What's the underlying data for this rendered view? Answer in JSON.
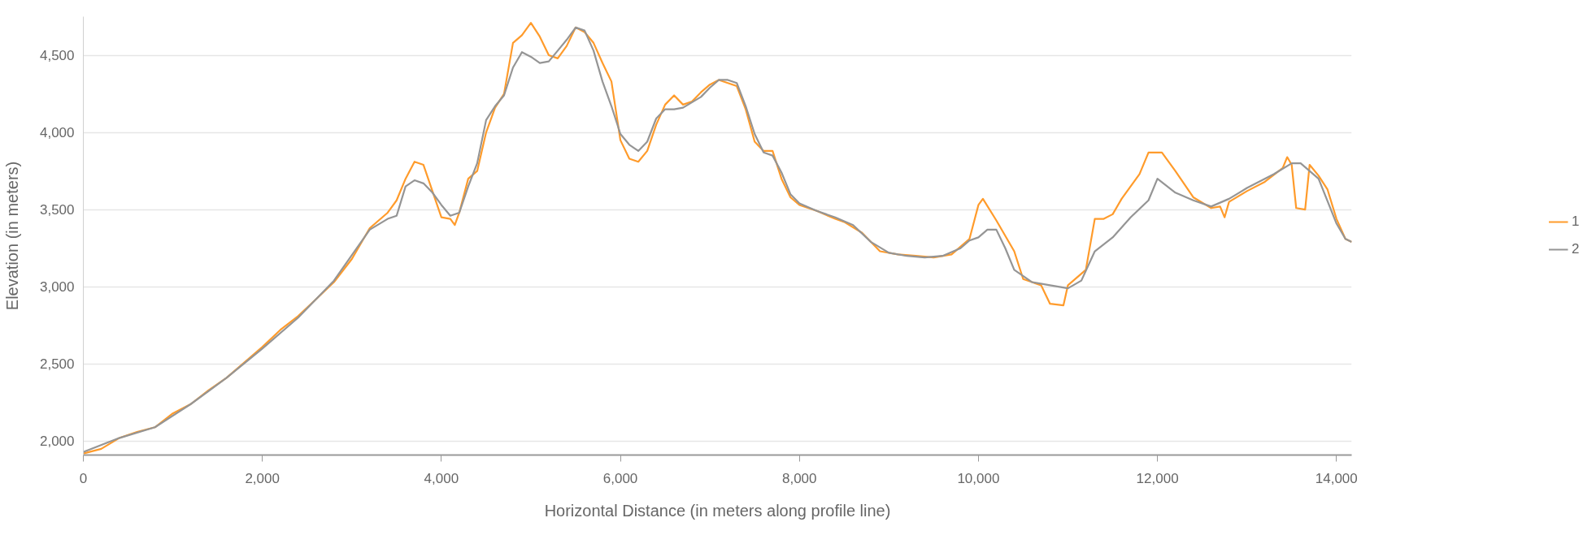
{
  "chart_data": {
    "type": "line",
    "xlabel": "Horizontal Distance (in meters along profile line)",
    "ylabel": "Elevation (in meters)",
    "xlim": [
      0,
      14170
    ],
    "ylim": [
      1910,
      4750
    ],
    "xticks": [
      0,
      {
        "value": 2000,
        "label": "2,000"
      },
      {
        "value": 4000,
        "label": "4,000"
      },
      {
        "value": 6000,
        "label": "6,000"
      },
      {
        "value": 8000,
        "label": "8,000"
      },
      {
        "value": 10000,
        "label": "10,000"
      },
      {
        "value": 12000,
        "label": "12,000"
      },
      {
        "value": 14000,
        "label": "14,000"
      }
    ],
    "yticks": [
      {
        "value": 2000,
        "label": "2,000"
      },
      {
        "value": 2500,
        "label": "2,500"
      },
      {
        "value": 3000,
        "label": "3,000"
      },
      {
        "value": 3500,
        "label": "3,500"
      },
      {
        "value": 4000,
        "label": "4,000"
      },
      {
        "value": 4500,
        "label": "4,500"
      }
    ],
    "grid": "y",
    "legend": "right",
    "line_style": "solid",
    "series": [
      {
        "name": "1",
        "color": "#ff9b2b",
        "x": [
          0,
          200,
          400,
          600,
          800,
          1000,
          1200,
          1400,
          1600,
          1800,
          2000,
          2200,
          2400,
          2600,
          2800,
          3000,
          3200,
          3400,
          3500,
          3600,
          3700,
          3800,
          3900,
          4000,
          4100,
          4150,
          4200,
          4300,
          4400,
          4500,
          4600,
          4700,
          4800,
          4900,
          5000,
          5100,
          5200,
          5300,
          5400,
          5500,
          5600,
          5700,
          5800,
          5900,
          6000,
          6100,
          6200,
          6300,
          6400,
          6500,
          6600,
          6700,
          6800,
          6900,
          7000,
          7100,
          7200,
          7300,
          7400,
          7500,
          7600,
          7700,
          7800,
          7900,
          8000,
          8200,
          8400,
          8500,
          8700,
          8900,
          9100,
          9300,
          9500,
          9700,
          9900,
          10000,
          10050,
          10200,
          10400,
          10500,
          10700,
          10800,
          10950,
          11000,
          11200,
          11300,
          11400,
          11500,
          11600,
          11800,
          11900,
          12050,
          12200,
          12400,
          12600,
          12700,
          12750,
          12800,
          13000,
          13200,
          13400,
          13450,
          13500,
          13550,
          13650,
          13700,
          13800,
          13900,
          14000,
          14100,
          14170
        ],
        "values": [
          1920,
          1950,
          2020,
          2060,
          2090,
          2180,
          2240,
          2330,
          2410,
          2510,
          2610,
          2720,
          2810,
          2920,
          3030,
          3180,
          3380,
          3480,
          3560,
          3700,
          3810,
          3790,
          3620,
          3450,
          3440,
          3400,
          3480,
          3700,
          3750,
          4000,
          4160,
          4250,
          4580,
          4630,
          4710,
          4620,
          4500,
          4480,
          4560,
          4680,
          4650,
          4580,
          4450,
          4330,
          3950,
          3830,
          3810,
          3880,
          4050,
          4180,
          4240,
          4180,
          4200,
          4260,
          4310,
          4340,
          4320,
          4300,
          4150,
          3940,
          3880,
          3880,
          3700,
          3580,
          3530,
          3490,
          3440,
          3420,
          3350,
          3230,
          3210,
          3200,
          3190,
          3210,
          3310,
          3530,
          3570,
          3430,
          3230,
          3050,
          3010,
          2890,
          2880,
          3010,
          3110,
          3440,
          3440,
          3470,
          3570,
          3730,
          3870,
          3870,
          3750,
          3580,
          3510,
          3520,
          3450,
          3550,
          3620,
          3680,
          3770,
          3840,
          3790,
          3510,
          3500,
          3790,
          3720,
          3630,
          3440,
          3310,
          3290
        ]
      },
      {
        "name": "2",
        "color": "#959595",
        "x": [
          0,
          400,
          800,
          1200,
          1600,
          2000,
          2400,
          2800,
          3200,
          3400,
          3500,
          3600,
          3700,
          3800,
          3900,
          4000,
          4100,
          4200,
          4300,
          4400,
          4500,
          4600,
          4700,
          4800,
          4900,
          5000,
          5100,
          5200,
          5300,
          5400,
          5500,
          5600,
          5700,
          5800,
          5900,
          6000,
          6100,
          6200,
          6300,
          6400,
          6500,
          6600,
          6700,
          6900,
          7000,
          7100,
          7200,
          7300,
          7400,
          7500,
          7600,
          7700,
          7800,
          7900,
          8000,
          8200,
          8400,
          8600,
          8800,
          9000,
          9200,
          9400,
          9600,
          9800,
          9900,
          10000,
          10100,
          10200,
          10300,
          10400,
          10600,
          10800,
          11000,
          11150,
          11300,
          11500,
          11700,
          11900,
          12000,
          12200,
          12400,
          12600,
          12800,
          13000,
          13300,
          13500,
          13600,
          13800,
          14000,
          14100,
          14170
        ],
        "values": [
          1930,
          2020,
          2090,
          2240,
          2410,
          2600,
          2800,
          3040,
          3370,
          3440,
          3460,
          3650,
          3690,
          3670,
          3610,
          3530,
          3460,
          3480,
          3650,
          3800,
          4080,
          4170,
          4240,
          4420,
          4520,
          4490,
          4450,
          4460,
          4530,
          4600,
          4680,
          4660,
          4530,
          4330,
          4170,
          3990,
          3920,
          3880,
          3940,
          4090,
          4150,
          4150,
          4160,
          4230,
          4290,
          4340,
          4340,
          4320,
          4170,
          3990,
          3870,
          3850,
          3740,
          3600,
          3540,
          3490,
          3450,
          3400,
          3290,
          3220,
          3200,
          3190,
          3200,
          3250,
          3300,
          3320,
          3370,
          3370,
          3250,
          3110,
          3030,
          3010,
          2990,
          3040,
          3230,
          3320,
          3450,
          3560,
          3700,
          3610,
          3560,
          3520,
          3570,
          3640,
          3730,
          3800,
          3800,
          3700,
          3410,
          3310,
          3290
        ]
      }
    ]
  }
}
